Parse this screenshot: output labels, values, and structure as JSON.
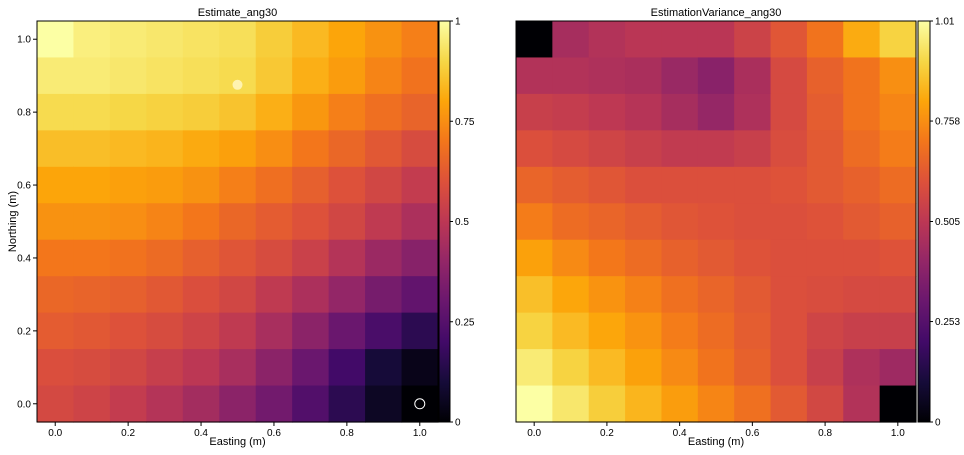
{
  "figure": {
    "background": "#ffffff",
    "colormap": "inferno"
  },
  "chart_data": [
    {
      "type": "heatmap",
      "title": "Estimate_ang30",
      "xlabel": "Easting (m)",
      "ylabel": "Northing (m)",
      "x_ticks": [
        "0.0",
        "0.2",
        "0.4",
        "0.6",
        "0.8",
        "1.0"
      ],
      "y_ticks": [
        "0.0",
        "0.2",
        "0.4",
        "0.6",
        "0.8",
        "1.0"
      ],
      "x_centers": [
        0,
        0.1,
        0.2,
        0.3,
        0.4,
        0.5,
        0.6,
        0.7,
        0.8,
        0.9,
        1.0
      ],
      "y_centers": [
        1.0,
        0.9,
        0.8,
        0.7,
        0.6,
        0.5,
        0.4,
        0.3,
        0.2,
        0.1,
        0.0
      ],
      "xlim": [
        -0.05,
        1.05
      ],
      "ylim": [
        -0.05,
        1.05
      ],
      "colorbar": {
        "ticks": [
          "0",
          "0.25",
          "0.5",
          "0.75",
          "1"
        ],
        "min": 0,
        "max": 1
      },
      "values": [
        [
          1.0,
          0.96,
          0.95,
          0.94,
          0.93,
          0.92,
          0.88,
          0.84,
          0.8,
          0.76,
          0.72
        ],
        [
          0.95,
          0.95,
          0.94,
          0.93,
          0.92,
          0.91,
          0.87,
          0.82,
          0.78,
          0.73,
          0.69
        ],
        [
          0.91,
          0.91,
          0.9,
          0.89,
          0.88,
          0.86,
          0.82,
          0.77,
          0.72,
          0.68,
          0.65
        ],
        [
          0.85,
          0.85,
          0.84,
          0.83,
          0.81,
          0.79,
          0.75,
          0.7,
          0.66,
          0.62,
          0.58
        ],
        [
          0.8,
          0.8,
          0.79,
          0.78,
          0.76,
          0.72,
          0.68,
          0.64,
          0.6,
          0.56,
          0.52
        ],
        [
          0.76,
          0.76,
          0.75,
          0.73,
          0.7,
          0.66,
          0.63,
          0.6,
          0.56,
          0.51,
          0.46
        ],
        [
          0.7,
          0.7,
          0.69,
          0.67,
          0.64,
          0.61,
          0.58,
          0.54,
          0.48,
          0.42,
          0.37
        ],
        [
          0.66,
          0.65,
          0.64,
          0.62,
          0.59,
          0.56,
          0.51,
          0.46,
          0.4,
          0.33,
          0.28
        ],
        [
          0.63,
          0.62,
          0.6,
          0.58,
          0.55,
          0.51,
          0.45,
          0.38,
          0.3,
          0.22,
          0.15
        ],
        [
          0.59,
          0.58,
          0.56,
          0.53,
          0.5,
          0.45,
          0.38,
          0.3,
          0.2,
          0.1,
          0.04
        ],
        [
          0.57,
          0.55,
          0.52,
          0.48,
          0.44,
          0.38,
          0.32,
          0.24,
          0.15,
          0.06,
          0.0
        ]
      ],
      "markers": [
        {
          "x": 0.5,
          "y": 0.875,
          "style": "filled",
          "color": "#fff3b0"
        },
        {
          "x": 1.0,
          "y": 0.0,
          "style": "open",
          "color": "#ffffff"
        }
      ]
    },
    {
      "type": "heatmap",
      "title": "EstimationVariance_ang30",
      "xlabel": "Easting (m)",
      "ylabel": "",
      "x_ticks": [
        "0.0",
        "0.2",
        "0.4",
        "0.6",
        "0.8",
        "1.0"
      ],
      "y_ticks": [],
      "x_centers": [
        0,
        0.1,
        0.2,
        0.3,
        0.4,
        0.5,
        0.6,
        0.7,
        0.8,
        0.9,
        1.0
      ],
      "y_centers": [
        1.0,
        0.9,
        0.8,
        0.7,
        0.6,
        0.5,
        0.4,
        0.3,
        0.2,
        0.1,
        0.0
      ],
      "xlim": [
        -0.05,
        1.05
      ],
      "ylim": [
        -0.05,
        1.05
      ],
      "colorbar": {
        "ticks": [
          "0",
          "0.253",
          "0.505",
          "0.758",
          "1.01"
        ],
        "min": 0,
        "max": 1.01
      },
      "values": [
        [
          0.0,
          0.45,
          0.48,
          0.5,
          0.5,
          0.5,
          0.55,
          0.62,
          0.7,
          0.82,
          0.9
        ],
        [
          0.48,
          0.48,
          0.47,
          0.46,
          0.42,
          0.38,
          0.46,
          0.58,
          0.65,
          0.7,
          0.76
        ],
        [
          0.54,
          0.53,
          0.51,
          0.49,
          0.45,
          0.41,
          0.47,
          0.58,
          0.64,
          0.7,
          0.74
        ],
        [
          0.6,
          0.58,
          0.56,
          0.54,
          0.52,
          0.52,
          0.54,
          0.59,
          0.63,
          0.68,
          0.72
        ],
        [
          0.66,
          0.64,
          0.62,
          0.6,
          0.6,
          0.6,
          0.6,
          0.61,
          0.63,
          0.65,
          0.68
        ],
        [
          0.72,
          0.68,
          0.66,
          0.64,
          0.62,
          0.61,
          0.6,
          0.6,
          0.61,
          0.63,
          0.65
        ],
        [
          0.8,
          0.75,
          0.71,
          0.68,
          0.65,
          0.63,
          0.61,
          0.6,
          0.6,
          0.6,
          0.61
        ],
        [
          0.86,
          0.81,
          0.77,
          0.73,
          0.69,
          0.66,
          0.63,
          0.6,
          0.59,
          0.58,
          0.58
        ],
        [
          0.9,
          0.85,
          0.81,
          0.77,
          0.72,
          0.68,
          0.64,
          0.6,
          0.56,
          0.54,
          0.54
        ],
        [
          0.96,
          0.9,
          0.85,
          0.8,
          0.75,
          0.7,
          0.65,
          0.6,
          0.54,
          0.47,
          0.43
        ],
        [
          1.01,
          0.95,
          0.89,
          0.84,
          0.79,
          0.74,
          0.69,
          0.63,
          0.57,
          0.48,
          0.0
        ]
      ],
      "markers": []
    }
  ]
}
